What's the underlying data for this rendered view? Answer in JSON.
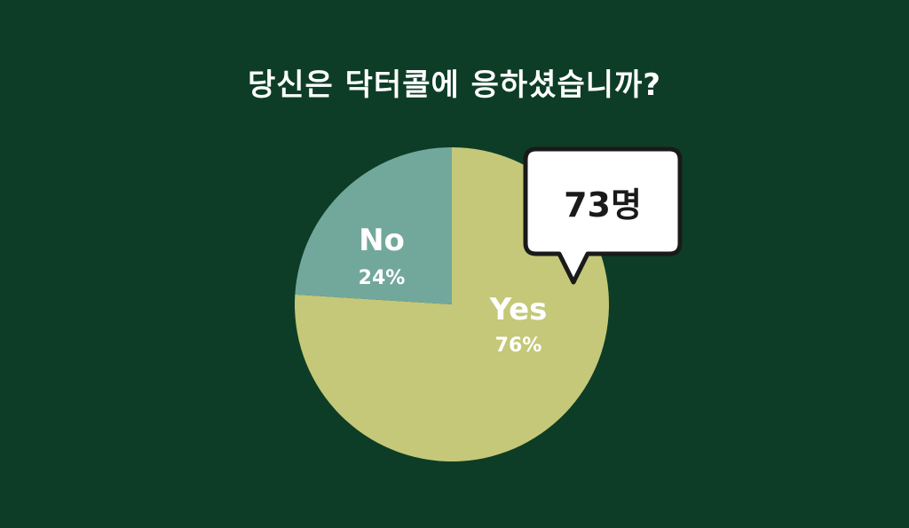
{
  "title": "당신은 닥터콜에 응하셨습니까?",
  "callout": "73명",
  "colors": {
    "background": "#0d3d26",
    "yes": "#c4c878",
    "no": "#72a89c",
    "text": "#ffffff"
  },
  "chart_data": {
    "type": "pie",
    "title": "당신은 닥터콜에 응하셨습니까?",
    "categories": [
      "Yes",
      "No"
    ],
    "values": [
      76,
      24
    ],
    "labels": [
      "76%",
      "24%"
    ],
    "start": "top",
    "direction": "clockwise",
    "annotation": "73명"
  }
}
